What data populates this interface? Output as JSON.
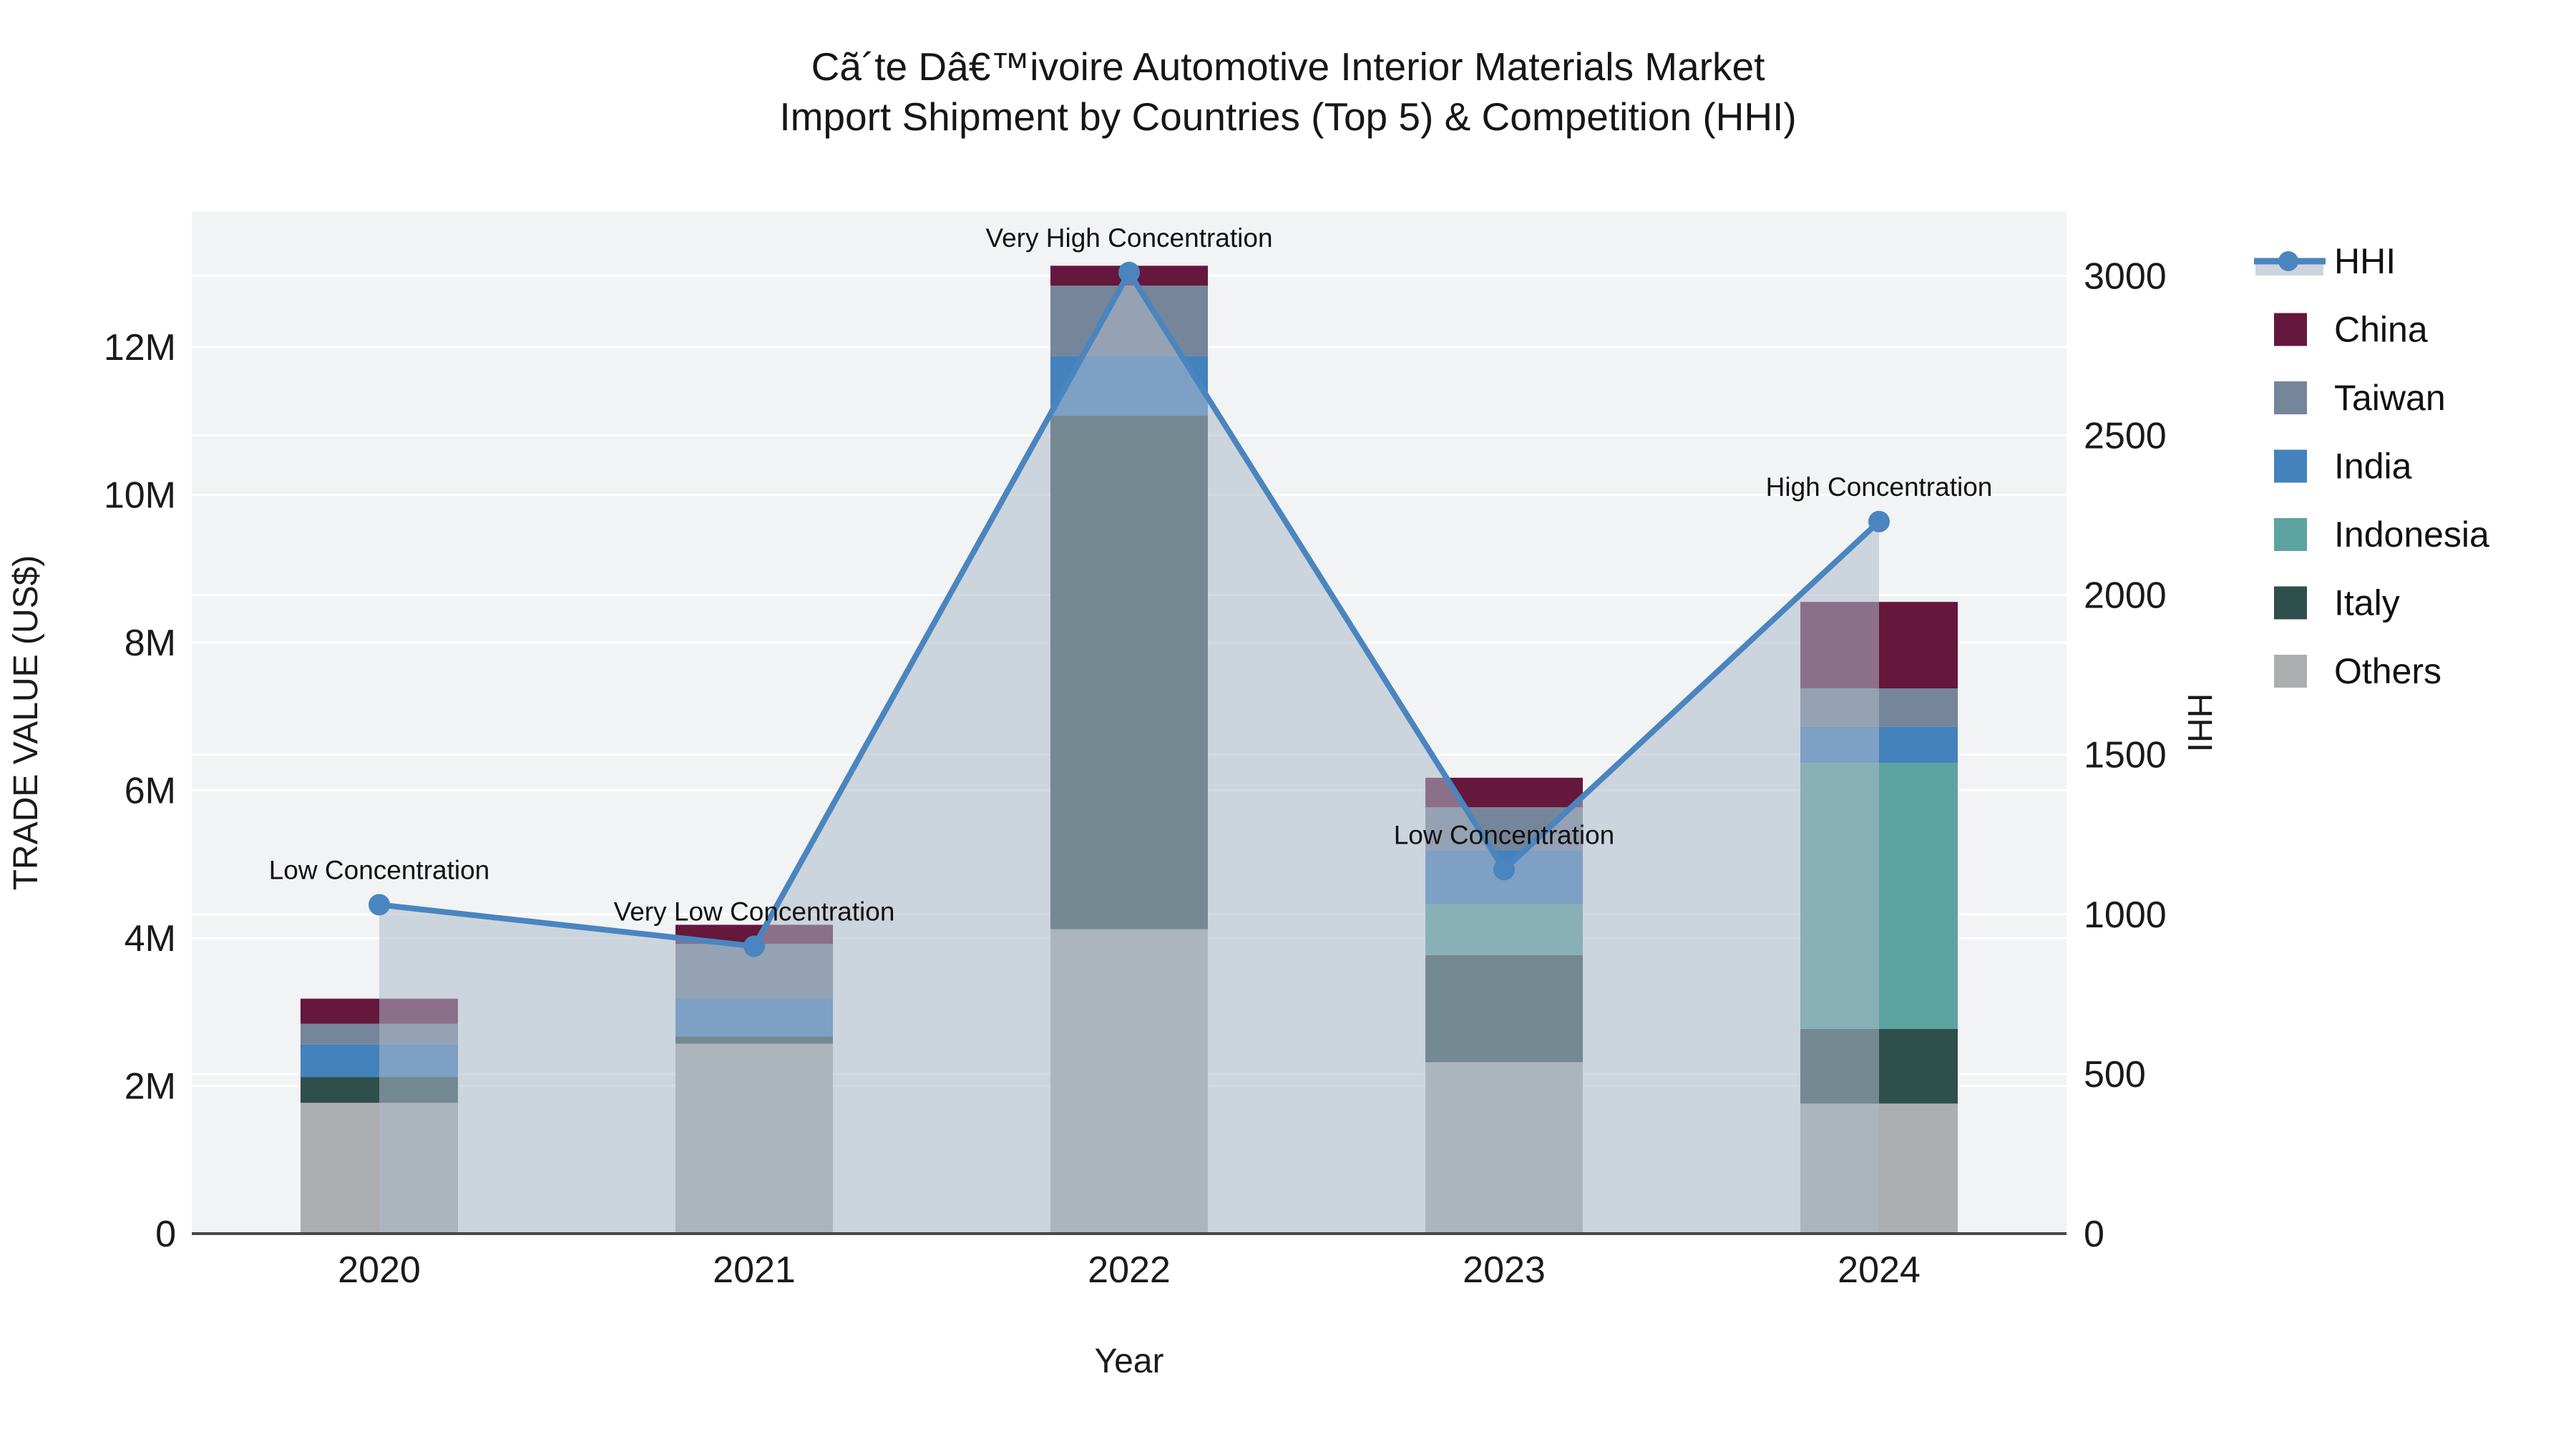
{
  "title": {
    "line1": "Cã´te Dâ€™ivoire Automotive Interior Materials Market",
    "line2": "Import Shipment by Countries (Top 5) & Competition (HHI)"
  },
  "chart_data": {
    "type": "combo_stacked_bar_and_area_line",
    "categories": [
      "2020",
      "2021",
      "2022",
      "2023",
      "2024"
    ],
    "x_title": "Year",
    "left_axis": {
      "title": "TRADE VALUE (US$)",
      "tick_labels": [
        "0",
        "2M",
        "4M",
        "6M",
        "8M",
        "10M",
        "12M"
      ],
      "tick_values_usd": [
        0,
        2000000,
        4000000,
        6000000,
        8000000,
        10000000,
        12000000
      ],
      "range_usd": [
        0,
        13830000
      ],
      "grid": true
    },
    "right_axis": {
      "title": "HHI",
      "tick_labels": [
        "0",
        "500",
        "1000",
        "1500",
        "2000",
        "2500",
        "3000"
      ],
      "tick_values": [
        0,
        500,
        1000,
        1500,
        2000,
        2500,
        3000
      ],
      "range": [
        0,
        3200
      ],
      "grid": true
    },
    "bar_series": [
      {
        "name": "China",
        "color": "#65173c",
        "values_usd": [
          340000,
          260000,
          270000,
          400000,
          1170000
        ]
      },
      {
        "name": "Taiwan",
        "color": "#75859a",
        "values_usd": [
          280000,
          730000,
          950000,
          580000,
          520000
        ]
      },
      {
        "name": "India",
        "color": "#4382bc",
        "values_usd": [
          440000,
          520000,
          810000,
          730000,
          490000
        ]
      },
      {
        "name": "Indonesia",
        "color": "#5da3a1",
        "values_usd": [
          0,
          0,
          0,
          690000,
          3600000
        ]
      },
      {
        "name": "Italy",
        "color": "#2f4f4c",
        "values_usd": [
          350000,
          100000,
          6950000,
          1450000,
          1010000
        ]
      },
      {
        "name": "Others",
        "color": "#acaeaf",
        "values_usd": [
          1770000,
          2570000,
          4120000,
          2320000,
          1760000
        ]
      }
    ],
    "bar_totals_usd": [
      3180000,
      4180000,
      13100000,
      6170000,
      8550000
    ],
    "stack_order_bottom_to_top": [
      "Others",
      "Italy",
      "Indonesia",
      "India",
      "Taiwan",
      "China"
    ],
    "line_series": {
      "name": "HHI",
      "values": [
        1030,
        900,
        3010,
        1140,
        2230
      ],
      "line_color": "#4a85bf",
      "marker_color": "#4a85bf",
      "area_fill": "rgba(173,185,202,0.55)",
      "legend_band_color": "#cdd4de"
    },
    "annotations": [
      {
        "category": "2020",
        "text": "Low Concentration"
      },
      {
        "category": "2021",
        "text": "Very Low Concentration"
      },
      {
        "category": "2022",
        "text": "Very High Concentration"
      },
      {
        "category": "2023",
        "text": "Low Concentration"
      },
      {
        "category": "2024",
        "text": "High Concentration"
      }
    ],
    "legend_items": [
      "HHI",
      "China",
      "Taiwan",
      "India",
      "Indonesia",
      "Italy",
      "Others"
    ],
    "colors": {
      "figure_bg": "#ffffff",
      "plot_bg": "#f2f3f4",
      "grid": "#ffffff",
      "axis_line": "#474747",
      "text": "#1a1a1a"
    }
  }
}
